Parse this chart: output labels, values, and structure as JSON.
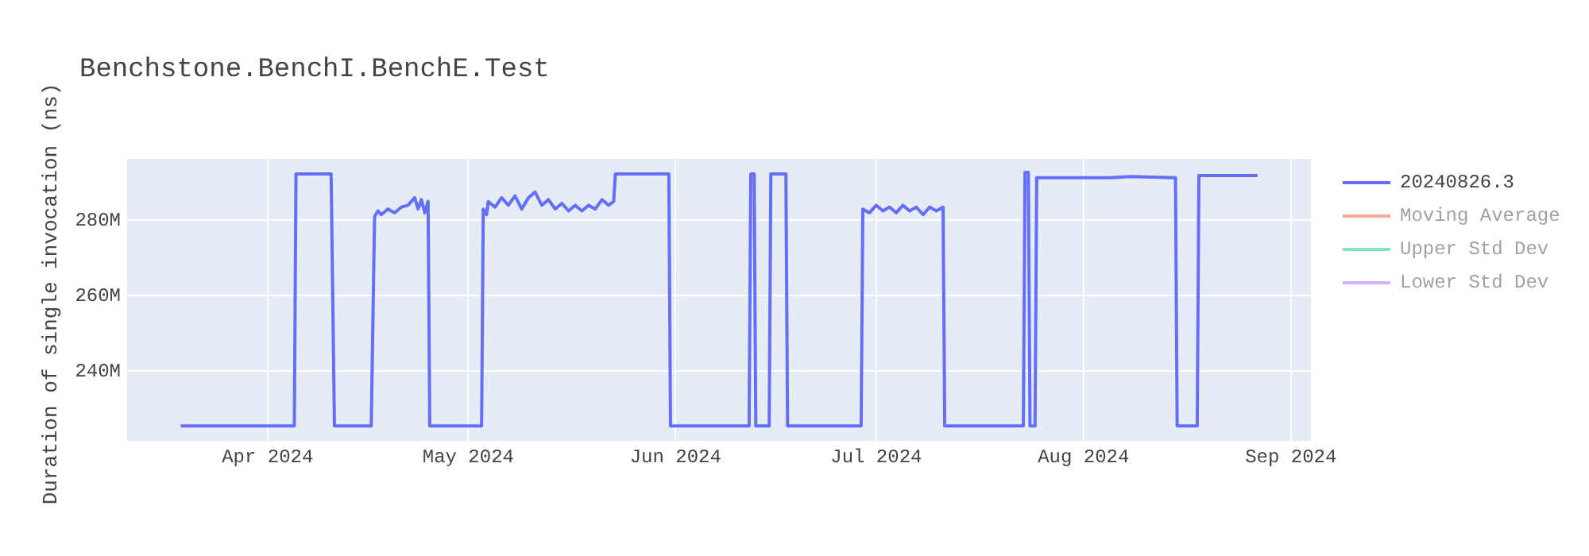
{
  "chart_data": {
    "type": "line",
    "title": "Benchstone.BenchI.BenchE.Test",
    "ylabel": "Duration of single invocation (ns)",
    "xlim": [
      "2024-03-11",
      "2024-09-04"
    ],
    "xticks": [
      {
        "value": "2024-04-01",
        "label": "Apr 2024"
      },
      {
        "value": "2024-05-01",
        "label": "May 2024"
      },
      {
        "value": "2024-06-01",
        "label": "Jun 2024"
      },
      {
        "value": "2024-07-01",
        "label": "Jul 2024"
      },
      {
        "value": "2024-08-01",
        "label": "Aug 2024"
      },
      {
        "value": "2024-09-01",
        "label": "Sep 2024"
      }
    ],
    "ylim": [
      221500000,
      296300000
    ],
    "yticks": [
      {
        "value": 240000000,
        "label": "240M"
      },
      {
        "value": 260000000,
        "label": "260M"
      },
      {
        "value": 280000000,
        "label": "280M"
      }
    ],
    "grid": true,
    "legend": "right",
    "marker": "none",
    "line_style": "solid",
    "series": [
      {
        "name": "20240826.3",
        "color": "#636efa",
        "x": [
          "2024-03-19",
          "2024-04-05T00:00",
          "2024-04-05T06:00",
          "2024-04-10T12:00",
          "2024-04-11",
          "2024-04-16T12:00",
          "2024-04-17",
          "2024-04-17T12:00",
          "2024-04-18",
          "2024-04-19",
          "2024-04-20",
          "2024-04-21",
          "2024-04-22",
          "2024-04-23",
          "2024-04-23T12:00",
          "2024-04-24",
          "2024-04-24T12:00",
          "2024-04-25",
          "2024-04-25T06:00",
          "2024-05-03",
          "2024-05-03T06:00",
          "2024-05-03T18:00",
          "2024-05-04",
          "2024-05-05",
          "2024-05-06",
          "2024-05-07",
          "2024-05-08",
          "2024-05-09",
          "2024-05-10",
          "2024-05-11",
          "2024-05-12",
          "2024-05-13",
          "2024-05-14",
          "2024-05-15",
          "2024-05-16",
          "2024-05-17",
          "2024-05-18",
          "2024-05-19",
          "2024-05-20",
          "2024-05-21",
          "2024-05-22",
          "2024-05-22T18:00",
          "2024-05-23",
          "2024-05-31",
          "2024-05-31T06:00",
          "2024-06-12",
          "2024-06-12T06:00",
          "2024-06-12T18:00",
          "2024-06-13",
          "2024-06-15",
          "2024-06-15T06:00",
          "2024-06-17T12:00",
          "2024-06-17T18:00",
          "2024-06-28T18:00",
          "2024-06-29",
          "2024-06-30",
          "2024-07-01",
          "2024-07-02",
          "2024-07-03",
          "2024-07-04",
          "2024-07-05",
          "2024-07-06",
          "2024-07-07",
          "2024-07-08",
          "2024-07-09",
          "2024-07-10",
          "2024-07-11",
          "2024-07-11T06:00",
          "2024-07-23",
          "2024-07-23T06:00",
          "2024-07-23T18:00",
          "2024-07-24",
          "2024-07-24T18:00",
          "2024-07-25",
          "2024-08-05",
          "2024-08-08",
          "2024-08-14T18:00",
          "2024-08-15",
          "2024-08-18",
          "2024-08-18T06:00",
          "2024-08-27"
        ],
        "values": [
          225500000,
          225500000,
          292300000,
          292300000,
          225500000,
          225500000,
          281000000,
          282500000,
          281500000,
          283000000,
          282000000,
          283500000,
          284000000,
          286000000,
          283000000,
          285500000,
          282000000,
          285000000,
          225500000,
          225500000,
          283000000,
          281500000,
          285000000,
          283500000,
          286000000,
          284000000,
          286500000,
          283000000,
          286000000,
          287500000,
          284000000,
          285500000,
          283000000,
          284500000,
          282500000,
          284000000,
          282500000,
          284000000,
          283000000,
          285500000,
          284000000,
          285000000,
          292300000,
          292300000,
          225500000,
          225500000,
          292300000,
          292300000,
          225500000,
          225500000,
          292300000,
          292300000,
          225500000,
          225500000,
          283000000,
          282000000,
          284000000,
          282500000,
          283500000,
          282000000,
          284000000,
          282500000,
          283500000,
          281500000,
          283500000,
          282500000,
          283500000,
          225500000,
          225500000,
          292700000,
          292700000,
          225500000,
          225500000,
          291300000,
          291300000,
          291600000,
          291300000,
          225500000,
          225500000,
          291900000,
          291900000
        ]
      },
      {
        "name": "Moving Average",
        "color": "#ef553b"
      },
      {
        "name": "Upper Std Dev",
        "color": "#00cc96"
      },
      {
        "name": "Lower Std Dev",
        "color": "#ab63fa"
      }
    ]
  }
}
